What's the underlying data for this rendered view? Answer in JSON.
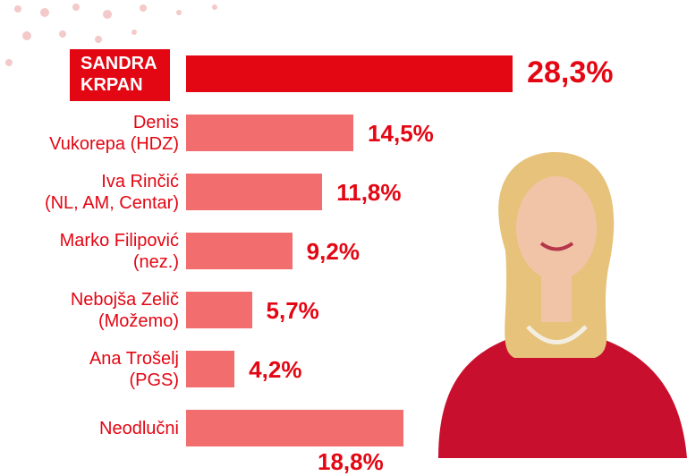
{
  "chart_data": {
    "type": "bar",
    "orientation": "horizontal",
    "categories": [
      "SANDRA\nKRPAN",
      "Denis\nVukorepa (HDZ)",
      "Iva Rinčić\n(NL, AM, Centar)",
      "Marko Filipović\n(nez.)",
      "Nebojša Zelič\n(Možemo)",
      "Ana Trošelj\n(PGS)",
      "Neodlučni"
    ],
    "values": [
      28.3,
      14.5,
      11.8,
      9.2,
      5.7,
      4.2,
      18.8
    ],
    "value_labels": [
      "28,3%",
      "14,5%",
      "11,8%",
      "9,2%",
      "5,7%",
      "4,2%",
      "18,8%"
    ],
    "colors": [
      "#e30613",
      "#f26d6d",
      "#f26d6d",
      "#f26d6d",
      "#f26d6d",
      "#f26d6d",
      "#f26d6d"
    ]
  }
}
